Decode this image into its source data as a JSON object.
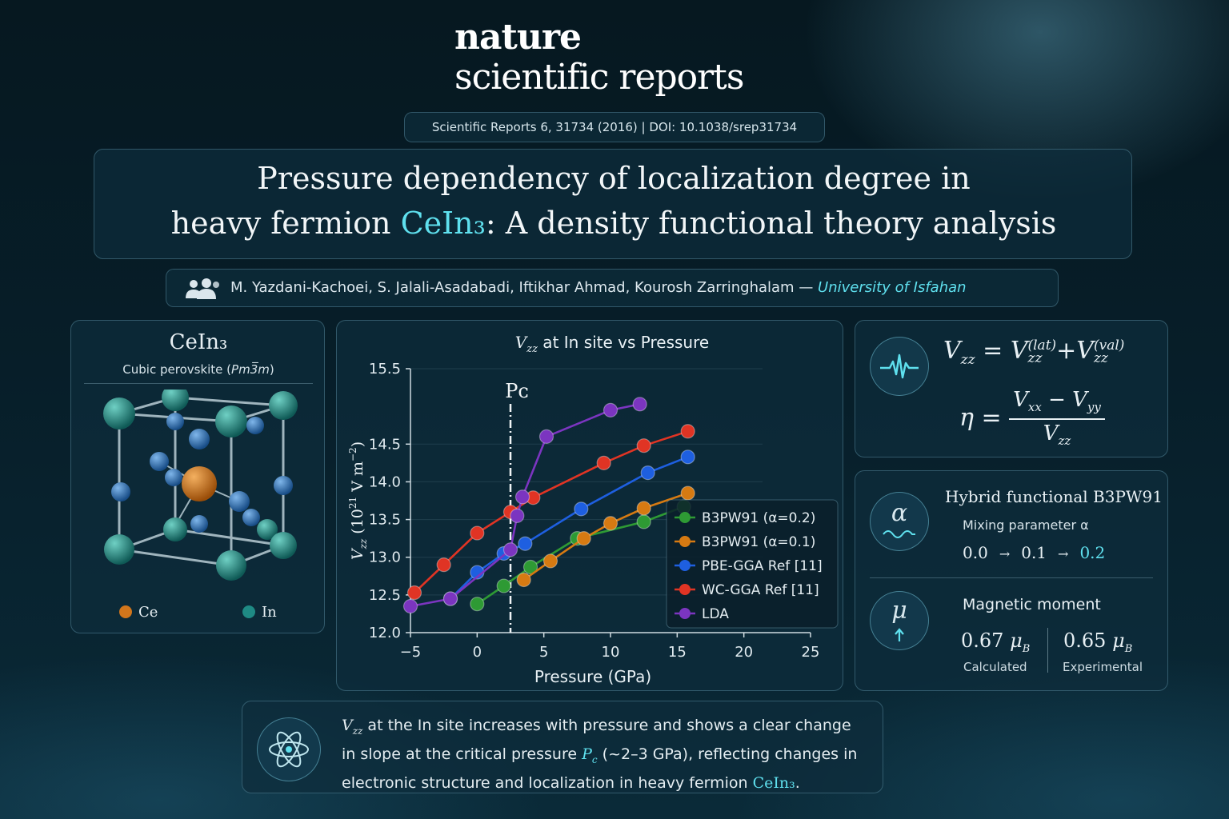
{
  "brand": {
    "line1": "nature",
    "line2": "scientific reports"
  },
  "citation": "Scientific Reports 6, 31734 (2016)  |  DOI: 10.1038/srep31734",
  "title": {
    "line1": "Pressure dependency of localization degree in",
    "line2_pre": "heavy fermion ",
    "line2_compound": "CeIn₃",
    "line2_post": ": A density functional theory analysis"
  },
  "authors": {
    "names": "M. Yazdani-Kachoei, S. Jalali-Asadabadi, Iftikhar Ahmad, Kourosh Zarringhalam — ",
    "affiliation": "University of Isfahan",
    "icon": "users-icon"
  },
  "crystal": {
    "title": "CeIn₃",
    "subtitle_pre": "Cubic perovskite (",
    "subtitle_group": "Pm3̅m",
    "subtitle_post": ")",
    "legend": [
      {
        "label": "Ce",
        "color": "#d2761c"
      },
      {
        "label": "In",
        "color": "#1f8a84"
      }
    ]
  },
  "chart_data": {
    "type": "line",
    "title": "V_zz at In site vs Pressure",
    "xlabel": "Pressure (GPa)",
    "ylabel": "V_zz (10^21 V m^-2)",
    "xlim": [
      -5,
      25
    ],
    "ylim": [
      12.0,
      15.5
    ],
    "xticks": [
      "−5",
      "0",
      "5",
      "10",
      "15",
      "20",
      "25"
    ],
    "yticks": [
      "12.0",
      "12.5",
      "13.0",
      "13.5",
      "14.0",
      "14.5",
      "15.5"
    ],
    "annotation": {
      "label": "Pᴄ",
      "x": 2.5
    },
    "legend_position": "right",
    "series": [
      {
        "name": "B3PW91 (α=0.2)",
        "color": "#2e9a34",
        "points": [
          [
            0,
            12.38
          ],
          [
            2,
            12.62
          ],
          [
            4,
            12.87
          ],
          [
            7.5,
            13.25
          ],
          [
            12.5,
            13.47
          ],
          [
            15.5,
            13.67
          ]
        ]
      },
      {
        "name": "B3PW91 (α=0.1)",
        "color": "#d67a12",
        "points": [
          [
            3.5,
            12.7
          ],
          [
            5.5,
            12.95
          ],
          [
            8,
            13.25
          ],
          [
            10,
            13.45
          ],
          [
            12.5,
            13.65
          ],
          [
            15.8,
            13.85
          ]
        ]
      },
      {
        "name": "PBE-GGA Ref [11]",
        "color": "#1e5fe0",
        "points": [
          [
            -2,
            12.45
          ],
          [
            0,
            12.8
          ],
          [
            2,
            13.05
          ],
          [
            3.6,
            13.18
          ],
          [
            7.8,
            13.64
          ],
          [
            12.8,
            14.12
          ],
          [
            15.8,
            14.33
          ]
        ]
      },
      {
        "name": "WC-GGA Ref [11]",
        "color": "#e03424",
        "points": [
          [
            -4.7,
            12.53
          ],
          [
            -2.5,
            12.9
          ],
          [
            0,
            13.32
          ],
          [
            2.5,
            13.6
          ],
          [
            4.2,
            13.79
          ],
          [
            9.5,
            14.25
          ],
          [
            12.5,
            14.48
          ],
          [
            15.8,
            14.67
          ]
        ]
      },
      {
        "name": "LDA",
        "color": "#7b35c0",
        "points": [
          [
            -5,
            12.35
          ],
          [
            -2,
            12.45
          ],
          [
            2.5,
            13.1
          ],
          [
            3,
            13.55
          ],
          [
            3.4,
            13.8
          ],
          [
            5.2,
            14.6
          ],
          [
            10,
            14.95
          ],
          [
            12.2,
            15.03
          ]
        ]
      }
    ]
  },
  "equations": {
    "icon": "waveform-icon",
    "eq1": {
      "lhs": "V",
      "lhs_sub": "zz",
      "t1": "V",
      "t1_sub": "zz",
      "t1_sup": "(lat)",
      "plus": "+",
      "t2": "V",
      "t2_sub": "zz",
      "t2_sup": "(val)"
    },
    "eq2": {
      "lhs": "η",
      "num_a": "V",
      "num_a_sub": "xx",
      "minus": "−",
      "num_b": "V",
      "num_b_sub": "yy",
      "den": "V",
      "den_sub": "zz"
    }
  },
  "hybrid": {
    "icon": "alpha-icon",
    "symbol": "α",
    "title": "Hybrid functional B3PW91",
    "param_label": "Mixing parameter α",
    "steps": [
      "0.0",
      "0.1",
      "0.2"
    ],
    "arrow": "→"
  },
  "magnetic": {
    "icon": "mu-icon",
    "symbol": "μ",
    "title": "Magnetic moment",
    "calc_value": "0.67",
    "calc_label": "Calculated",
    "exp_value": "0.65",
    "exp_label": "Experimental",
    "unit": "μ",
    "unit_sub": "B"
  },
  "summary": {
    "icon": "atom-icon",
    "line1_var": "V",
    "line1_sub": "zz",
    "line1": " at the In site increases with pressure and shows a clear change",
    "line2_pre": "in slope at the critical pressure ",
    "line2_var": "P",
    "line2_sub": "c",
    "line2_post": " (~2–3 GPa), reflecting changes in",
    "line3_pre": "electronic structure and localization in heavy fermion ",
    "line3_compound": "CeIn₃",
    "line3_post": "."
  },
  "colors": {
    "accent": "#5fe0ee",
    "panel_border": "#78b4c8"
  }
}
